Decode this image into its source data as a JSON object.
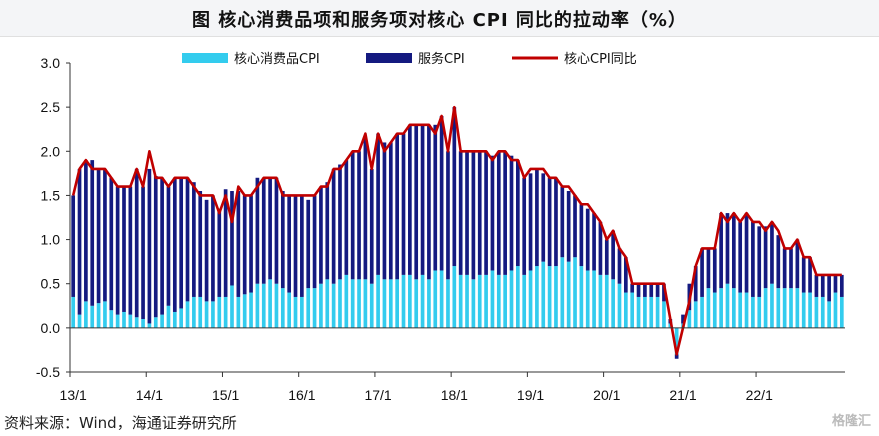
{
  "title": "图  核心消费品项和服务项对核心 CPI 同比的拉动率（%）",
  "source": "资料来源：Wind，海通证券研究所",
  "watermark": "格隆汇",
  "colors": {
    "goods": "#33ccee",
    "services": "#141a80",
    "core": "#c00000"
  },
  "chart_data": {
    "type": "bar",
    "stacked": true,
    "title": "",
    "xlabel": "",
    "ylabel": "",
    "ylim": [
      -0.5,
      3.0
    ],
    "yticks": [
      "3.0",
      "2.5",
      "2.0",
      "1.5",
      "1.0",
      "0.5",
      "0.0",
      "-0.5"
    ],
    "ytick_values": [
      3.0,
      2.5,
      2.0,
      1.5,
      1.0,
      0.5,
      0.0,
      -0.5
    ],
    "xticks": [
      {
        "label": "13/1",
        "index": 0
      },
      {
        "label": "14/1",
        "index": 12
      },
      {
        "label": "15/1",
        "index": 24
      },
      {
        "label": "16/1",
        "index": 36
      },
      {
        "label": "17/1",
        "index": 48
      },
      {
        "label": "18/1",
        "index": 60
      },
      {
        "label": "19/1",
        "index": 72
      },
      {
        "label": "20/1",
        "index": 84
      },
      {
        "label": "21/1",
        "index": 96
      },
      {
        "label": "22/1",
        "index": 108
      }
    ],
    "legend": [
      "核心消费品CPI",
      "服务CPI",
      "核心CPI同比"
    ],
    "legend_position": "top",
    "series": [
      {
        "name": "核心消费品CPI",
        "type": "bar",
        "values": [
          0.35,
          0.15,
          0.3,
          0.25,
          0.28,
          0.3,
          0.2,
          0.15,
          0.18,
          0.15,
          0.12,
          0.1,
          0.05,
          0.12,
          0.15,
          0.25,
          0.18,
          0.22,
          0.3,
          0.35,
          0.35,
          0.3,
          0.3,
          0.35,
          0.35,
          0.48,
          0.35,
          0.38,
          0.4,
          0.5,
          0.5,
          0.55,
          0.5,
          0.45,
          0.4,
          0.35,
          0.35,
          0.45,
          0.45,
          0.5,
          0.55,
          0.5,
          0.55,
          0.6,
          0.55,
          0.55,
          0.55,
          0.5,
          0.6,
          0.55,
          0.55,
          0.55,
          0.6,
          0.6,
          0.55,
          0.6,
          0.55,
          0.65,
          0.65,
          0.55,
          0.7,
          0.6,
          0.6,
          0.55,
          0.6,
          0.6,
          0.65,
          0.6,
          0.6,
          0.65,
          0.7,
          0.6,
          0.65,
          0.7,
          0.75,
          0.7,
          0.7,
          0.8,
          0.75,
          0.8,
          0.7,
          0.65,
          0.65,
          0.6,
          0.6,
          0.55,
          0.5,
          0.4,
          0.4,
          0.35,
          0.35,
          0.35,
          0.35,
          0.3,
          0.05,
          -0.3,
          0.05,
          0.2,
          0.3,
          0.35,
          0.45,
          0.4,
          0.45,
          0.5,
          0.45,
          0.4,
          0.4,
          0.35,
          0.35,
          0.45,
          0.5,
          0.45,
          0.45,
          0.45,
          0.45,
          0.4,
          0.4,
          0.35,
          0.35,
          0.3,
          0.4,
          0.35
        ]
      },
      {
        "name": "服务CPI",
        "type": "bar",
        "values": [
          1.15,
          1.65,
          1.6,
          1.65,
          1.52,
          1.5,
          1.5,
          1.45,
          1.42,
          1.45,
          1.68,
          1.5,
          1.75,
          1.6,
          1.55,
          1.35,
          1.52,
          1.48,
          1.4,
          1.3,
          1.2,
          1.15,
          1.2,
          1.0,
          1.22,
          1.07,
          1.2,
          1.12,
          1.1,
          1.2,
          1.2,
          1.15,
          1.2,
          1.1,
          1.1,
          1.15,
          1.15,
          1.0,
          1.05,
          1.1,
          1.1,
          1.3,
          1.3,
          1.3,
          1.45,
          1.45,
          1.6,
          1.3,
          1.6,
          1.55,
          1.55,
          1.65,
          1.6,
          1.7,
          1.75,
          1.7,
          1.75,
          1.65,
          1.75,
          1.45,
          1.8,
          1.4,
          1.4,
          1.45,
          1.4,
          1.4,
          1.3,
          1.4,
          1.4,
          1.3,
          1.2,
          1.1,
          1.1,
          1.1,
          1.0,
          1.0,
          1.0,
          0.8,
          0.8,
          0.7,
          0.7,
          0.7,
          0.65,
          0.6,
          0.4,
          0.55,
          0.4,
          0.4,
          0.1,
          0.15,
          0.15,
          0.15,
          0.15,
          0.2,
          0.05,
          -0.05,
          0.1,
          0.3,
          0.4,
          0.55,
          0.45,
          0.5,
          0.85,
          0.8,
          0.85,
          0.8,
          0.9,
          0.85,
          0.8,
          0.7,
          0.7,
          0.6,
          0.45,
          0.45,
          0.55,
          0.4,
          0.4,
          0.25,
          0.25,
          0.3,
          0.2,
          0.25
        ]
      },
      {
        "name": "核心CPI同比",
        "type": "line",
        "values": [
          1.5,
          1.8,
          1.9,
          1.8,
          1.8,
          1.8,
          1.7,
          1.6,
          1.6,
          1.6,
          1.8,
          1.6,
          2.0,
          1.7,
          1.7,
          1.6,
          1.7,
          1.7,
          1.7,
          1.6,
          1.5,
          1.5,
          1.5,
          1.3,
          1.5,
          1.2,
          1.6,
          1.5,
          1.5,
          1.6,
          1.7,
          1.7,
          1.7,
          1.5,
          1.5,
          1.5,
          1.5,
          1.5,
          1.5,
          1.6,
          1.6,
          1.8,
          1.8,
          1.9,
          2.0,
          2.0,
          2.2,
          1.8,
          2.2,
          2.0,
          2.1,
          2.2,
          2.2,
          2.3,
          2.3,
          2.3,
          2.3,
          2.2,
          2.4,
          2.0,
          2.5,
          2.0,
          2.0,
          2.0,
          2.0,
          2.0,
          1.9,
          2.0,
          2.0,
          1.9,
          1.9,
          1.7,
          1.8,
          1.8,
          1.8,
          1.7,
          1.7,
          1.6,
          1.6,
          1.5,
          1.4,
          1.4,
          1.3,
          1.2,
          1.0,
          1.1,
          0.9,
          0.8,
          0.5,
          0.5,
          0.5,
          0.5,
          0.5,
          0.5,
          0.1,
          -0.3,
          0.0,
          0.3,
          0.7,
          0.9,
          0.9,
          0.9,
          1.3,
          1.2,
          1.3,
          1.2,
          1.3,
          1.2,
          1.2,
          1.1,
          1.2,
          1.1,
          0.9,
          0.9,
          1.0,
          0.8,
          0.8,
          0.6,
          0.6,
          0.6,
          0.6,
          0.6
        ]
      }
    ]
  }
}
